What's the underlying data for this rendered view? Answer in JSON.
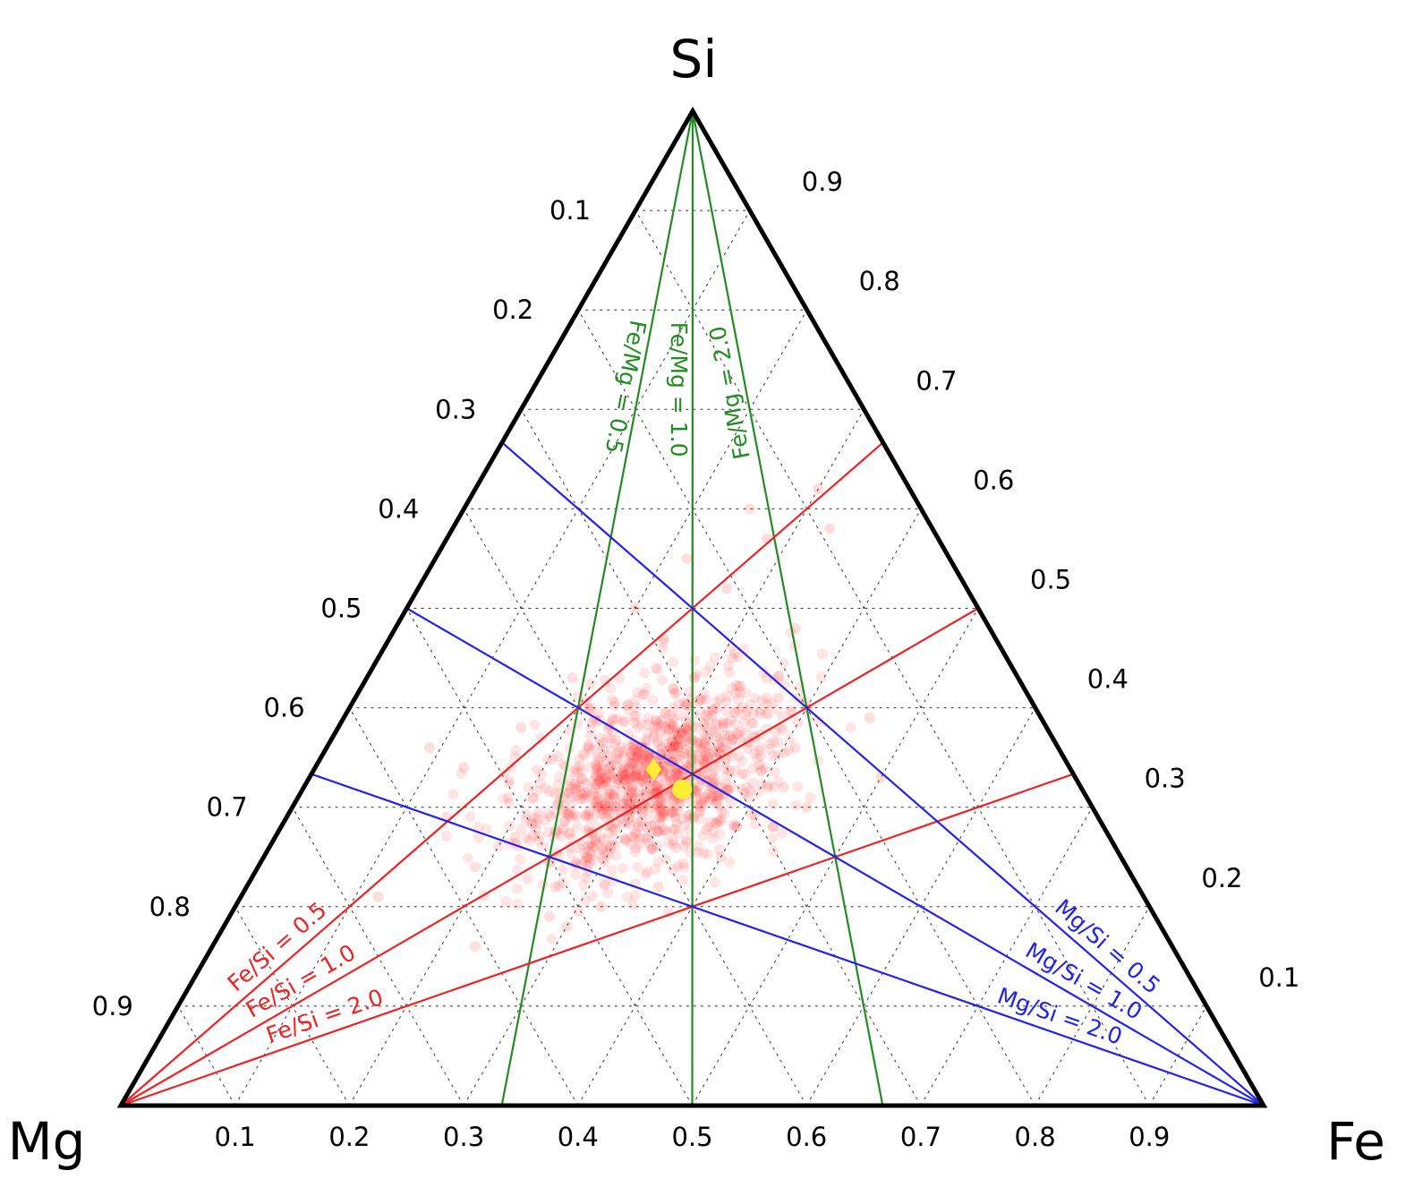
{
  "chart_data": {
    "type": "scatter",
    "subtype": "ternary",
    "vertices": {
      "top": "Si",
      "left": "Mg",
      "right": "Fe"
    },
    "ticks": [
      0.1,
      0.2,
      0.3,
      0.4,
      0.5,
      0.6,
      0.7,
      0.8,
      0.9
    ],
    "tick_labels": [
      "0.1",
      "0.2",
      "0.3",
      "0.4",
      "0.5",
      "0.6",
      "0.7",
      "0.8",
      "0.9"
    ],
    "grid": true,
    "colors": {
      "frame": "#000000",
      "fe_mg": "#228b22",
      "fe_si": "#ee2222",
      "mg_si": "#2222ee",
      "points": "#ff3333",
      "highlight": "#ffee33"
    },
    "ratio_lines": {
      "fe_mg": [
        {
          "ratio": 0.5,
          "label": "Fe/Mg = 0.5"
        },
        {
          "ratio": 1.0,
          "label": "Fe/Mg = 1.0"
        },
        {
          "ratio": 2.0,
          "label": "Fe/Mg = 2.0"
        }
      ],
      "fe_si": [
        {
          "ratio": 0.5,
          "label": "Fe/Si = 0.5"
        },
        {
          "ratio": 1.0,
          "label": "Fe/Si = 1.0"
        },
        {
          "ratio": 2.0,
          "label": "Fe/Si = 2.0"
        }
      ],
      "mg_si": [
        {
          "ratio": 0.5,
          "label": "Mg/Si = 0.5"
        },
        {
          "ratio": 1.0,
          "label": "Mg/Si = 1.0"
        },
        {
          "ratio": 2.0,
          "label": "Mg/Si = 2.0"
        }
      ]
    },
    "cluster": {
      "description": "dense cloud of semi-transparent sample points (Si, Fe fractions)",
      "center": {
        "si": 0.33,
        "fe": 0.3
      },
      "spread": {
        "si": 0.05,
        "fe": 0.05
      },
      "count": 1100
    },
    "points": [
      {
        "si": 0.47,
        "fe": 0.24
      },
      {
        "si": 0.5,
        "fe": 0.2
      },
      {
        "si": 0.45,
        "fe": 0.31
      },
      {
        "si": 0.43,
        "fe": 0.18
      },
      {
        "si": 0.52,
        "fe": 0.27
      },
      {
        "si": 0.48,
        "fe": 0.35
      },
      {
        "si": 0.41,
        "fe": 0.37
      },
      {
        "si": 0.55,
        "fe": 0.22
      },
      {
        "si": 0.3,
        "fe": 0.45
      },
      {
        "si": 0.28,
        "fe": 0.43
      },
      {
        "si": 0.36,
        "fe": 0.41
      },
      {
        "si": 0.25,
        "fe": 0.4
      },
      {
        "si": 0.22,
        "fe": 0.36
      },
      {
        "si": 0.2,
        "fe": 0.32
      },
      {
        "si": 0.32,
        "fe": 0.42
      },
      {
        "si": 0.27,
        "fe": 0.21
      },
      {
        "si": 0.24,
        "fe": 0.19
      },
      {
        "si": 0.29,
        "fe": 0.14
      },
      {
        "si": 0.38,
        "fe": 0.16
      },
      {
        "si": 0.34,
        "fe": 0.13
      },
      {
        "si": 0.22,
        "fe": 0.27
      },
      {
        "si": 0.19,
        "fe": 0.28
      },
      {
        "si": 0.18,
        "fe": 0.3
      },
      {
        "si": 0.16,
        "fe": 0.23
      },
      {
        "si": 0.57,
        "fe": 0.28
      },
      {
        "si": 0.62,
        "fe": 0.3
      },
      {
        "si": 0.6,
        "fe": 0.25
      },
      {
        "si": 0.58,
        "fe": 0.33
      },
      {
        "si": 0.39,
        "fe": 0.46
      },
      {
        "si": 0.33,
        "fe": 0.5
      },
      {
        "si": 0.21,
        "fe": 0.12
      },
      {
        "si": 0.36,
        "fe": 0.09
      }
    ],
    "highlights": [
      {
        "shape": "diamond",
        "si": 0.338,
        "fe": 0.297
      },
      {
        "shape": "circle",
        "si": 0.318,
        "fe": 0.332
      }
    ]
  }
}
